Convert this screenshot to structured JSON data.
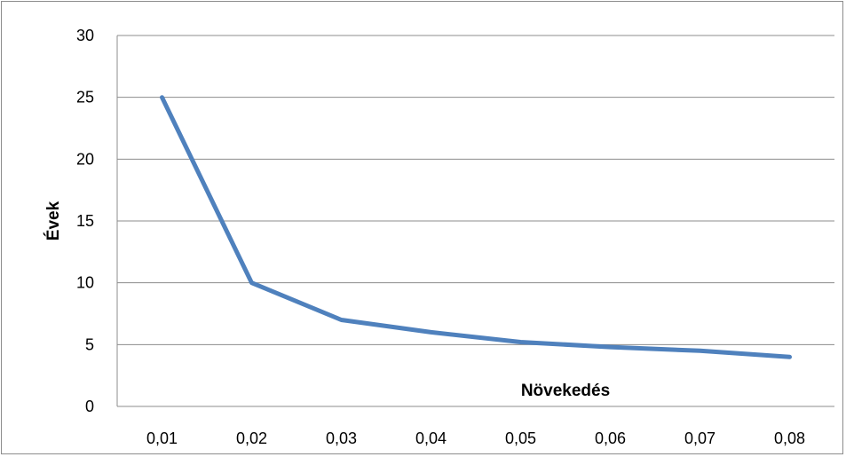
{
  "chart_data": {
    "type": "line",
    "xlabel": "Növekedés",
    "ylabel": "Évek",
    "categories": [
      "0,01",
      "0,02",
      "0,03",
      "0,04",
      "0,05",
      "0,06",
      "0,07",
      "0,08"
    ],
    "series": [
      {
        "values": [
          25,
          10,
          7,
          6,
          5.2,
          4.8,
          4.5,
          4
        ],
        "color": "#4f81bd"
      }
    ],
    "ylim": [
      0,
      30
    ],
    "yticks": [
      0,
      5,
      10,
      15,
      20,
      25,
      30
    ],
    "grid": true,
    "legend": "none"
  }
}
